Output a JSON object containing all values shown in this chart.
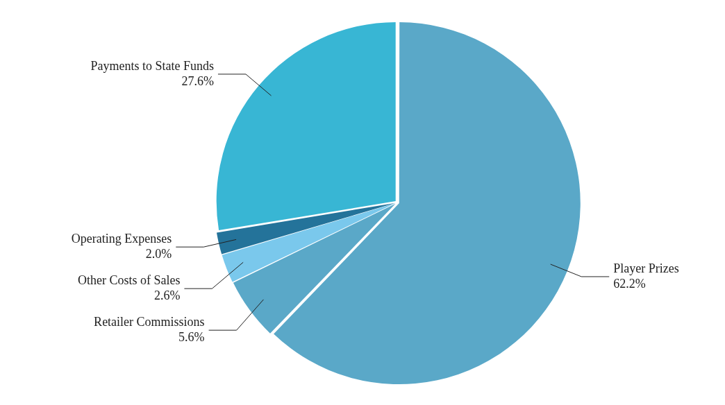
{
  "chart_data": {
    "type": "pie",
    "categories": [
      "Player Prizes",
      "Retailer Commissions",
      "Other Costs of Sales",
      "Operating Expenses",
      "Payments to State Funds"
    ],
    "values": [
      62.2,
      5.6,
      2.6,
      2.0,
      27.6
    ],
    "value_labels": [
      "62.2%",
      "5.6%",
      "2.6%",
      "2.0%",
      "27.6%"
    ],
    "colors": [
      "#5aa8c8",
      "#5aa8c8",
      "#7ac8ec",
      "#24739a",
      "#38b6d4"
    ],
    "legend": false
  }
}
